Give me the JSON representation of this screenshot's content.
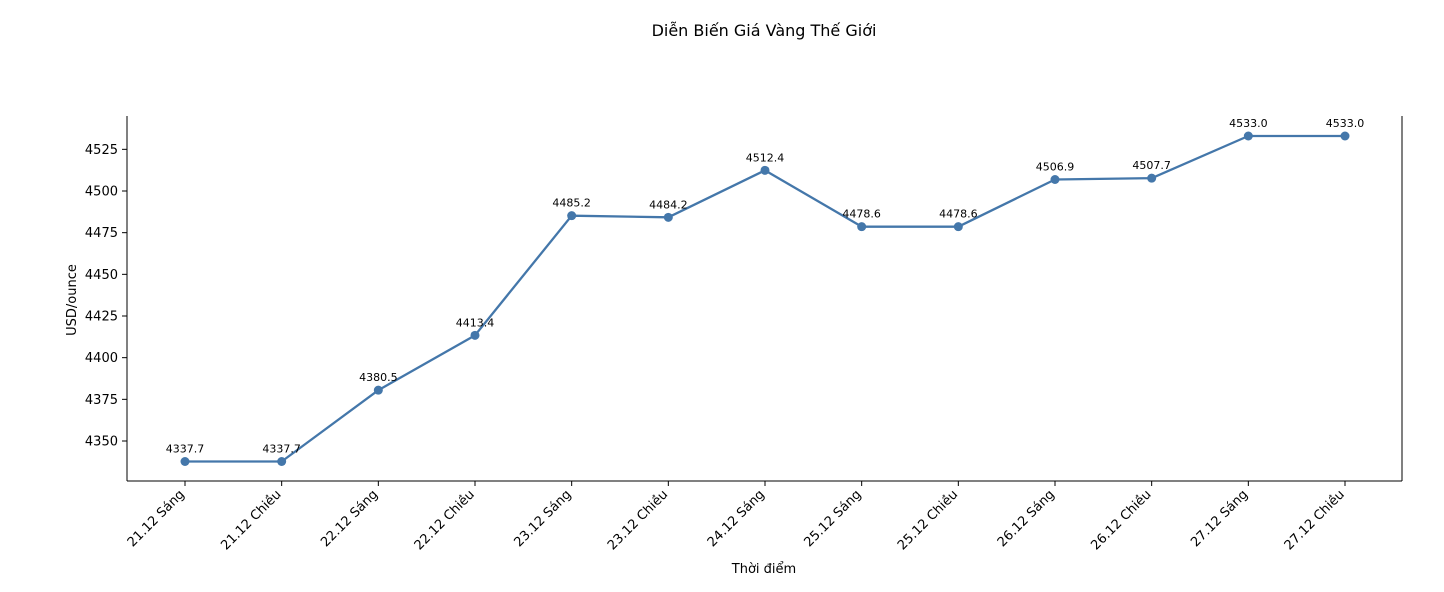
{
  "chart_data": {
    "type": "line",
    "title": "Diễn Biến Giá Vàng Thế Giới",
    "xlabel": "Thời điểm",
    "ylabel": "USD/ounce",
    "categories": [
      "21.12 Sáng",
      "21.12 Chiều",
      "22.12 Sáng",
      "22.12 Chiều",
      "23.12 Sáng",
      "23.12 Chiều",
      "24.12 Sáng",
      "25.12 Sáng",
      "25.12 Chiều",
      "26.12 Sáng",
      "26.12 Chiều",
      "27.12 Sáng",
      "27.12 Chiều"
    ],
    "values": [
      4337.7,
      4337.7,
      4380.5,
      4413.4,
      4485.2,
      4484.2,
      4512.4,
      4478.6,
      4478.6,
      4506.9,
      4507.7,
      4533.0,
      4533.0
    ],
    "data_labels": [
      "4337.7",
      "4337.7",
      "4380.5",
      "4413.4",
      "4485.2",
      "4484.2",
      "4512.4",
      "4478.6",
      "4478.6",
      "4506.9",
      "4507.7",
      "4533.0",
      "4533.0"
    ],
    "yticks": [
      4350,
      4375,
      4400,
      4425,
      4450,
      4475,
      4500,
      4525
    ],
    "ylim": [
      4326.0,
      4545.0
    ],
    "grid": false,
    "line_color": "#4477aa"
  }
}
